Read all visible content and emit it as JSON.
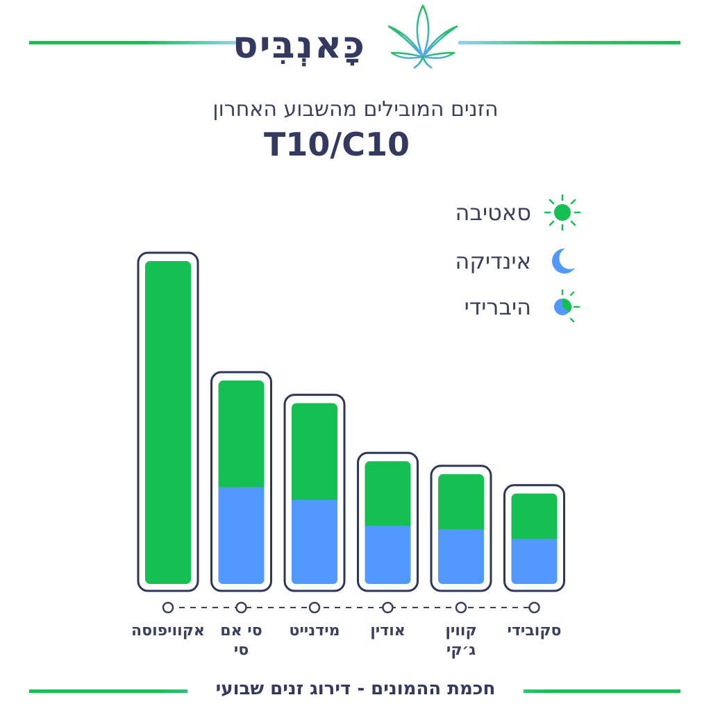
{
  "brand": {
    "name": "כָּאנְבִּיס",
    "logo_icon": "cannabis-leaf-icon",
    "colors": {
      "green": "#15c052",
      "blue": "#5199ff",
      "navy": "#34395f"
    }
  },
  "header": {
    "subtitle": "הזנים המובילים מהשבוע האחרון",
    "title": "T10/C10"
  },
  "legend": [
    {
      "label": "סאטיבה",
      "icon": "sun-icon",
      "color": "#15c052"
    },
    {
      "label": "אינדיקה",
      "icon": "moon-icon",
      "color": "#5199ff"
    },
    {
      "label": "היברידי",
      "icon": "half-sun-half-moon-icon",
      "color": "#15c052"
    }
  ],
  "footer": {
    "text": "חכמת ההמונים - דירוג זנים שבועי"
  },
  "chart_data": {
    "type": "bar",
    "stacked": true,
    "categories": [
      "אקוויפוסה",
      "סי אם סי",
      "מידנייט",
      "אודין",
      "קווין ג׳קי",
      "סקובידי"
    ],
    "category_lines": [
      [
        "אקוויפוסה"
      ],
      [
        "סי אם",
        "סי"
      ],
      [
        "מידנייט"
      ],
      [
        "אודין"
      ],
      [
        "קווין",
        "ג׳קי"
      ],
      [
        "סקובידי"
      ]
    ],
    "series": [
      {
        "color": "#5199ff",
        "values": [
          0,
          30,
          26,
          18,
          17,
          14
        ]
      },
      {
        "color": "#15c052",
        "values": [
          100,
          33,
          30,
          20,
          17,
          14
        ]
      }
    ],
    "ylim": [
      0,
      100
    ],
    "grid": false,
    "legend_position": "top-right"
  }
}
